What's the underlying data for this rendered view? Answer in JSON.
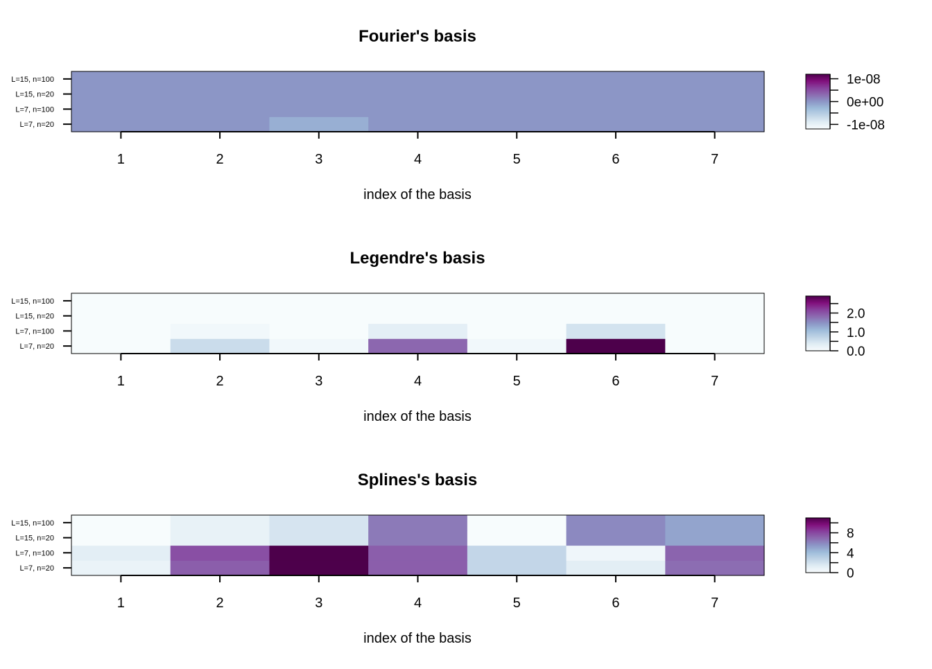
{
  "chart_data": [
    {
      "type": "heatmap",
      "title": "Fourier's basis",
      "xlabel": "index of the basis",
      "ylabel": "",
      "x_categories": [
        "1",
        "2",
        "3",
        "4",
        "5",
        "6",
        "7"
      ],
      "y_categories": [
        "L=7, n=20",
        "L=7, n=100",
        "L=15, n=20",
        "L=15, n=100"
      ],
      "zlim": [
        -1.2e-08,
        1.2e-08
      ],
      "legend_ticks": [
        1e-08,
        0,
        -1e-08
      ],
      "legend_tick_labels": [
        "1e-08",
        "0e+00",
        "-1e-08"
      ],
      "values": [
        [
          0,
          0,
          -2e-09,
          0,
          0,
          0,
          0
        ],
        [
          0,
          0,
          0,
          0,
          0,
          0,
          0
        ],
        [
          0,
          0,
          0,
          0,
          0,
          0,
          0
        ],
        [
          0,
          0,
          0,
          0,
          0,
          0,
          0
        ]
      ]
    },
    {
      "type": "heatmap",
      "title": "Legendre's basis",
      "xlabel": "index of the basis",
      "ylabel": "",
      "x_categories": [
        "1",
        "2",
        "3",
        "4",
        "5",
        "6",
        "7"
      ],
      "y_categories": [
        "L=7, n=20",
        "L=7, n=100",
        "L=15, n=20",
        "L=15, n=100"
      ],
      "zlim": [
        0,
        2.9
      ],
      "legend_ticks": [
        2.0,
        1.0,
        0.0
      ],
      "legend_tick_labels": [
        "2.0",
        "1.0",
        "0.0"
      ],
      "values": [
        [
          0,
          0.6,
          0.1,
          1.85,
          0.1,
          2.9,
          0
        ],
        [
          0,
          0.1,
          0,
          0.3,
          0,
          0.5,
          0
        ],
        [
          0,
          0,
          0,
          0,
          0,
          0,
          0
        ],
        [
          0,
          0,
          0,
          0,
          0,
          0,
          0
        ]
      ]
    },
    {
      "type": "heatmap",
      "title": "Splines's basis",
      "xlabel": "index of the basis",
      "ylabel": "",
      "x_categories": [
        "1",
        "2",
        "3",
        "4",
        "5",
        "6",
        "7"
      ],
      "y_categories": [
        "L=7, n=20",
        "L=7, n=100",
        "L=15, n=20",
        "L=15, n=100"
      ],
      "zlim": [
        0,
        11
      ],
      "legend_ticks": [
        8,
        4,
        0
      ],
      "legend_tick_labels": [
        "8",
        "4",
        "0"
      ],
      "values": [
        [
          0.8,
          7.3,
          11,
          7.3,
          2.6,
          1.2,
          6.8
        ],
        [
          1.2,
          7.8,
          11,
          7.3,
          2.6,
          0.5,
          7.1
        ],
        [
          0,
          0.9,
          1.8,
          6.4,
          0,
          5.9,
          5.0
        ],
        [
          0,
          0.9,
          1.8,
          6.4,
          0,
          5.9,
          5.0
        ]
      ]
    }
  ],
  "colors": {
    "palette": [
      "#F7FCFD",
      "#E0ECF4",
      "#BFD3E6",
      "#9EBCDA",
      "#8C96C6",
      "#8C6BB1",
      "#88419D",
      "#810F7C",
      "#4D004B"
    ],
    "axis": "#000000",
    "background": "#FFFFFF"
  }
}
